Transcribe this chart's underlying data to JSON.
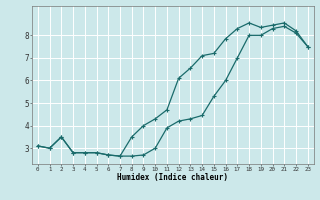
{
  "xlabel": "Humidex (Indice chaleur)",
  "xlim": [
    -0.5,
    23.5
  ],
  "ylim": [
    2.3,
    9.3
  ],
  "xticks": [
    0,
    1,
    2,
    3,
    4,
    5,
    6,
    7,
    8,
    9,
    10,
    11,
    12,
    13,
    14,
    15,
    16,
    17,
    18,
    19,
    20,
    21,
    22,
    23
  ],
  "yticks": [
    3,
    4,
    5,
    6,
    7,
    8
  ],
  "bg_color": "#cce8ea",
  "line_color": "#1a6b6b",
  "grid_color": "#ffffff",
  "line1_x": [
    0,
    1,
    2,
    3,
    4,
    5,
    6,
    7,
    8,
    9,
    10,
    11,
    12,
    13,
    14,
    15,
    16,
    17,
    18,
    19,
    20,
    21,
    22,
    23
  ],
  "line1_y": [
    3.1,
    3.0,
    3.5,
    2.8,
    2.8,
    2.8,
    2.7,
    2.65,
    2.65,
    2.7,
    3.0,
    3.9,
    4.2,
    4.3,
    4.45,
    5.3,
    6.0,
    7.0,
    8.0,
    8.0,
    8.3,
    8.4,
    8.1,
    7.5
  ],
  "line2_x": [
    0,
    1,
    2,
    3,
    4,
    5,
    6,
    7,
    8,
    9,
    10,
    11,
    12,
    13,
    14,
    15,
    16,
    17,
    18,
    19,
    20,
    21,
    22,
    23
  ],
  "line2_y": [
    3.1,
    3.0,
    3.5,
    2.8,
    2.8,
    2.8,
    2.7,
    2.65,
    3.5,
    4.0,
    4.3,
    4.7,
    6.1,
    6.55,
    7.1,
    7.2,
    7.85,
    8.3,
    8.55,
    8.35,
    8.45,
    8.55,
    8.2,
    7.5
  ]
}
